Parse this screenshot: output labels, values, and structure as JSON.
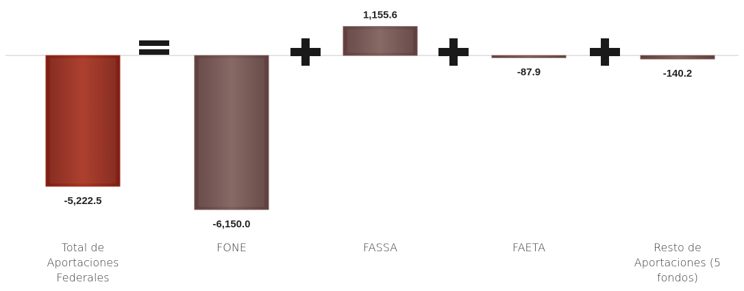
{
  "chart_data": {
    "type": "bar",
    "categories": [
      "Total de Aportaciones Federales",
      "FONE",
      "FASSA",
      "FAETA",
      "Resto de Aportaciones (5 fondos)"
    ],
    "category_lines": [
      [
        "Total de",
        "Aportaciones",
        "Federales"
      ],
      [
        "FONE"
      ],
      [
        "FASSA"
      ],
      [
        "FAETA"
      ],
      [
        "Resto de",
        "Aportaciones (5",
        "fondos)"
      ]
    ],
    "values": [
      -5222.5,
      -6150.0,
      1155.6,
      -87.9,
      -140.2
    ],
    "value_labels": [
      "-5,222.5",
      "-6,150.0",
      "1,155.6",
      "-87.9",
      "-140.2"
    ],
    "operators": [
      "=",
      "+",
      "+",
      "+"
    ],
    "colors": [
      "#a02e1f",
      "#7a5552",
      "#7a5552",
      "#7a5552",
      "#7a5552"
    ],
    "ylim": [
      -6150.0,
      1155.6
    ],
    "grid": false,
    "legend": "none"
  }
}
